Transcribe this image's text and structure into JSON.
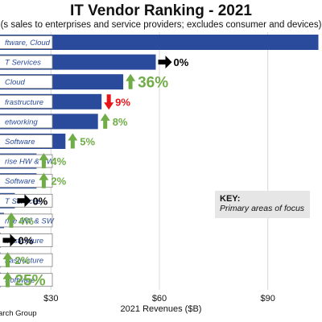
{
  "title": "IT Vendor Ranking - 2021",
  "subtitle": "(s sales to enterprises and service providers; excludes consumer and devices)",
  "key": {
    "heading": "KEY:",
    "text": "Primary areas of focus"
  },
  "source": "arch Group",
  "colors": {
    "bar": "#2a4b9b",
    "up": "#70ad47",
    "down": "#e8141a",
    "flat": "#000000",
    "grid": "#d9d9d9"
  },
  "chart_data": {
    "type": "bar",
    "orientation": "horizontal",
    "xlabel": "2021 Revenues ($B)",
    "xlim": [
      15,
      105
    ],
    "ticks": [
      30,
      60,
      90
    ],
    "tick_labels": [
      "$30",
      "$60",
      "$90"
    ],
    "grid": true,
    "categories": [
      "ftware, Cloud",
      "T Services",
      "Cloud",
      "frastructure",
      "etworking",
      "Software",
      "rise HW & SW",
      "Software",
      "T Services",
      "rise HW & SW",
      "frastructure",
      "frastructure",
      "Software"
    ],
    "values": [
      104,
      59,
      50,
      44,
      43,
      34,
      26,
      26,
      20,
      17,
      16,
      16,
      16
    ],
    "growth_labels": [
      "",
      "0%",
      "36%",
      "9%",
      "8%",
      "5%",
      "4%",
      "2%",
      "0%",
      "4%",
      "0%",
      "2%",
      "25%"
    ],
    "growth_direction": [
      "",
      "flat",
      "up",
      "down",
      "up",
      "up",
      "up",
      "up",
      "flat",
      "up",
      "flat",
      "up",
      "up"
    ]
  }
}
